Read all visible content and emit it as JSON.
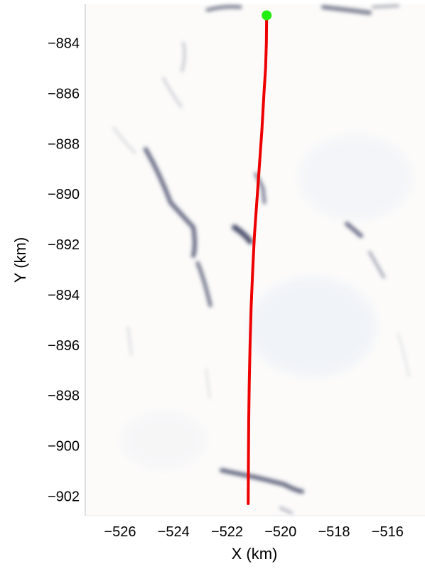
{
  "chart_data": {
    "type": "line",
    "xlabel": "X (km)",
    "ylabel": "Y (km)",
    "xlim": [
      -527.3,
      -514.6
    ],
    "ylim": [
      -902.78,
      -882.46
    ],
    "x_ticks": [
      -526,
      -524,
      -522,
      -520,
      -518,
      -516
    ],
    "y_ticks": [
      -884,
      -886,
      -888,
      -890,
      -892,
      -894,
      -896,
      -898,
      -900,
      -902
    ],
    "x_tick_labels": [
      "−526",
      "−524",
      "−522",
      "−520",
      "−518",
      "−516"
    ],
    "y_tick_labels": [
      "−884",
      "−886",
      "−888",
      "−890",
      "−892",
      "−894",
      "−896",
      "−898",
      "−900",
      "−902"
    ],
    "grid": false,
    "background": "grayscale satellite/radar image of snow-covered terrain with dark linear crevasse-like features",
    "series": [
      {
        "color": "#ee0000",
        "points": [
          {
            "x": -520.52,
            "y": -882.9
          },
          {
            "x": -520.53,
            "y": -884.0
          },
          {
            "x": -520.56,
            "y": -885.0
          },
          {
            "x": -520.62,
            "y": -886.0
          },
          {
            "x": -520.7,
            "y": -887.5
          },
          {
            "x": -520.8,
            "y": -889.0
          },
          {
            "x": -520.9,
            "y": -890.5
          },
          {
            "x": -520.98,
            "y": -891.7
          },
          {
            "x": -521.04,
            "y": -893.0
          },
          {
            "x": -521.1,
            "y": -894.5
          },
          {
            "x": -521.14,
            "y": -896.0
          },
          {
            "x": -521.17,
            "y": -897.5
          },
          {
            "x": -521.19,
            "y": -899.0
          },
          {
            "x": -521.2,
            "y": -900.5
          },
          {
            "x": -521.21,
            "y": -902.3
          }
        ]
      }
    ],
    "markers": [
      {
        "x": -520.52,
        "y": -882.9,
        "color": "#22ee11",
        "shape": "circle"
      }
    ]
  }
}
